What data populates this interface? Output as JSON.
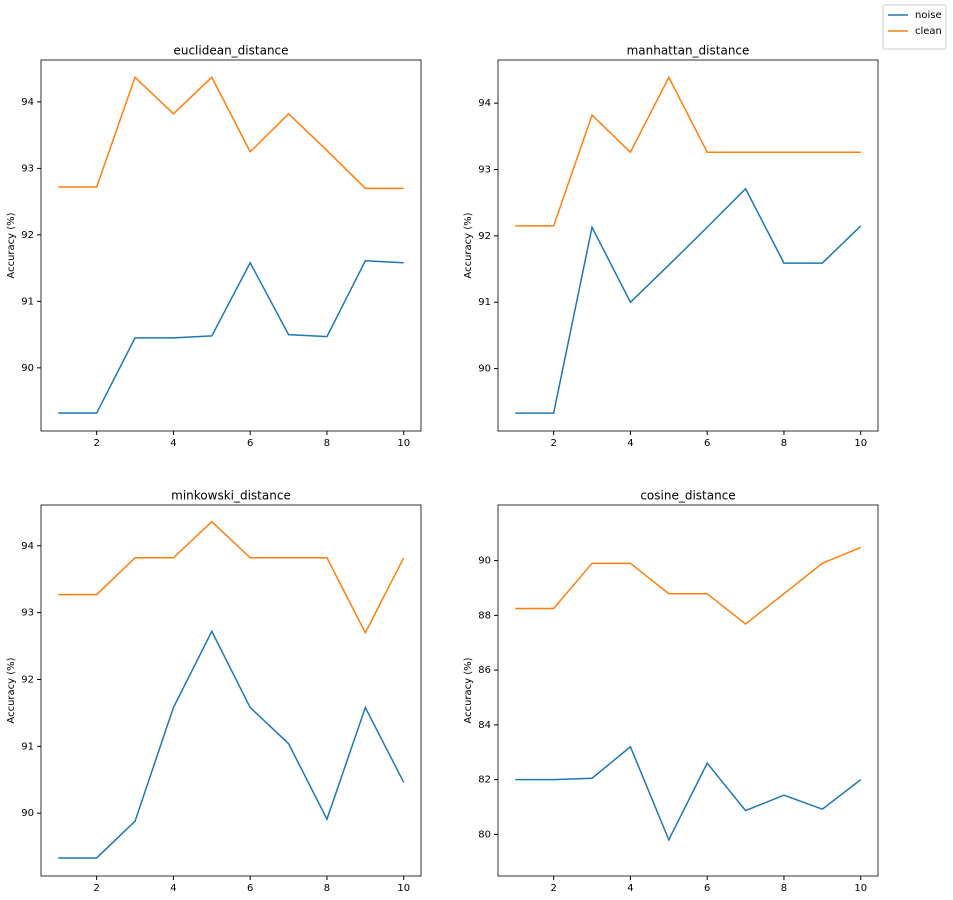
{
  "legend": "upper right",
  "chart_data": [
    {
      "type": "line",
      "title": "euclidean_distance",
      "y_label": "Accuracy (%)",
      "x": [
        1,
        2,
        3,
        4,
        5,
        6,
        7,
        8,
        9,
        10
      ],
      "xlim": [
        0.55,
        10.45
      ],
      "xticks": [
        2,
        4,
        6,
        8,
        10
      ],
      "ylim": [
        89.05,
        94.63
      ],
      "yticks": [
        90,
        91,
        92,
        93,
        94
      ],
      "series": [
        {
          "name": "noise",
          "color": "#1f77b4",
          "values": [
            89.32,
            89.32,
            90.45,
            90.45,
            90.48,
            91.58,
            90.5,
            90.47,
            91.61,
            91.58
          ]
        },
        {
          "name": "clean",
          "color": "#ff7f0e",
          "values": [
            92.72,
            92.72,
            94.37,
            93.82,
            94.37,
            93.25,
            93.82,
            93.27,
            92.7,
            92.7
          ]
        }
      ]
    },
    {
      "type": "line",
      "title": "manhattan_distance",
      "y_label": "Accuracy (%)",
      "x": [
        1,
        2,
        3,
        4,
        5,
        6,
        7,
        8,
        9,
        10
      ],
      "xlim": [
        0.55,
        10.45
      ],
      "xticks": [
        2,
        4,
        6,
        8,
        10
      ],
      "ylim": [
        89.06,
        94.65
      ],
      "yticks": [
        90,
        91,
        92,
        93,
        94
      ],
      "series": [
        {
          "name": "noise",
          "color": "#1f77b4",
          "values": [
            89.33,
            89.33,
            92.13,
            91.0,
            91.56,
            92.13,
            92.71,
            91.59,
            91.59,
            92.15
          ]
        },
        {
          "name": "clean",
          "color": "#ff7f0e",
          "values": [
            92.15,
            92.15,
            93.82,
            93.26,
            94.39,
            93.26,
            93.26,
            93.26,
            93.26,
            93.26
          ]
        }
      ]
    },
    {
      "type": "line",
      "title": "minkowski_distance",
      "y_label": "Accuracy (%)",
      "x": [
        1,
        2,
        3,
        4,
        5,
        6,
        7,
        8,
        9,
        10
      ],
      "xlim": [
        0.55,
        10.45
      ],
      "xticks": [
        2,
        4,
        6,
        8,
        10
      ],
      "ylim": [
        89.06,
        94.61
      ],
      "yticks": [
        90,
        91,
        92,
        93,
        94
      ],
      "series": [
        {
          "name": "noise",
          "color": "#1f77b4",
          "values": [
            89.33,
            89.33,
            89.88,
            91.58,
            92.72,
            91.58,
            91.04,
            89.91,
            91.58,
            90.46
          ]
        },
        {
          "name": "clean",
          "color": "#ff7f0e",
          "values": [
            93.27,
            93.27,
            93.82,
            93.82,
            94.36,
            93.82,
            93.82,
            93.82,
            92.7,
            93.82
          ]
        }
      ]
    },
    {
      "type": "line",
      "title": "cosine_distance",
      "y_label": "Accuracy (%)",
      "x": [
        1,
        2,
        3,
        4,
        5,
        6,
        7,
        8,
        9,
        10
      ],
      "xlim": [
        0.55,
        10.45
      ],
      "xticks": [
        2,
        4,
        6,
        8,
        10
      ],
      "ylim": [
        78.48,
        92.03
      ],
      "yticks": [
        80,
        82,
        84,
        86,
        88,
        90
      ],
      "series": [
        {
          "name": "noise",
          "color": "#1f77b4",
          "values": [
            82.0,
            82.0,
            82.05,
            83.2,
            79.8,
            82.6,
            80.87,
            81.43,
            80.92,
            82.0
          ]
        },
        {
          "name": "clean",
          "color": "#ff7f0e",
          "values": [
            88.25,
            88.25,
            89.9,
            89.9,
            88.79,
            88.79,
            87.68,
            88.79,
            89.9,
            90.48
          ]
        }
      ]
    }
  ]
}
